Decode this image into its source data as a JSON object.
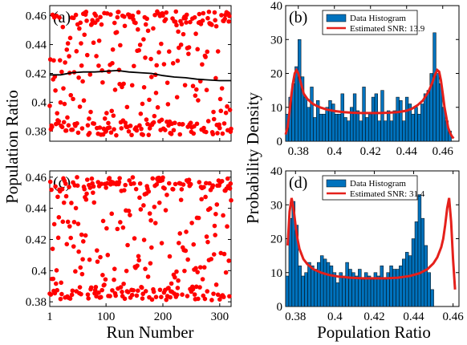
{
  "figure": {
    "ylabel_left": "Population Ratio",
    "xlabel_left": "Run Number",
    "ylabel_right": "Probability Density",
    "xlabel_right": "Population Ratio"
  },
  "colors": {
    "scatter": "#ff0000",
    "running_mean": "#000000",
    "hist_fill": "#0072bd",
    "hist_edge": "#000000",
    "fit_line": "#e5201b"
  },
  "chart_data": [
    {
      "panel": "a",
      "label": "(a)",
      "type": "scatter",
      "xlim": [
        1,
        320
      ],
      "ylim": [
        0.373,
        0.467
      ],
      "xticks": [
        1,
        100,
        200,
        300
      ],
      "yticks": [
        0.38,
        0.4,
        0.42,
        0.44,
        0.46
      ],
      "ytick_labels": [
        "0.38",
        "0.4",
        "0.42",
        "0.44",
        "0.46"
      ],
      "xtick_labels": [
        "",
        "",
        "",
        ""
      ],
      "seed": 7,
      "n_points": 320,
      "running_mean": {
        "x": [
          1,
          20,
          40,
          60,
          80,
          100,
          120,
          140,
          160,
          180,
          200,
          220,
          240,
          260,
          280,
          300,
          320
        ],
        "y": [
          0.419,
          0.419,
          0.4205,
          0.421,
          0.421,
          0.4215,
          0.422,
          0.421,
          0.4205,
          0.42,
          0.4185,
          0.4175,
          0.417,
          0.416,
          0.4155,
          0.415,
          0.415
        ]
      }
    },
    {
      "panel": "c",
      "label": "(c)",
      "type": "scatter",
      "xlim": [
        1,
        320
      ],
      "ylim": [
        0.377,
        0.464
      ],
      "xticks": [
        1,
        100,
        200,
        300
      ],
      "yticks": [
        0.38,
        0.4,
        0.42,
        0.44,
        0.46
      ],
      "ytick_labels": [
        "0.38",
        "0.4",
        "0.42",
        "0.44",
        "0.46"
      ],
      "xtick_labels": [
        "1",
        "100",
        "200",
        "300"
      ],
      "seed": 19,
      "n_points": 320
    },
    {
      "panel": "b",
      "label": "(b)",
      "type": "bar",
      "xlim": [
        0.373,
        0.469
      ],
      "ylim": [
        0,
        40
      ],
      "xticks": [
        0.38,
        0.4,
        0.42,
        0.44,
        0.46
      ],
      "xtick_labels": [
        "0.38",
        "0.4",
        "0.42",
        "0.44",
        "0.46"
      ],
      "yticks": [
        0,
        10,
        20,
        30,
        40
      ],
      "ytick_labels": [
        "0",
        "10",
        "20",
        "30",
        "40"
      ],
      "bin_start": 0.373,
      "bin_width": 0.0017,
      "values": [
        8,
        13,
        17,
        22,
        30,
        19,
        13,
        10,
        16,
        7,
        12,
        8,
        8,
        10,
        12,
        11,
        8,
        8,
        14,
        7,
        6,
        10,
        14,
        9,
        6,
        16,
        7,
        8,
        13,
        14,
        6,
        15,
        6,
        9,
        6,
        9,
        13,
        12,
        6,
        13,
        11,
        8,
        10,
        8,
        11,
        14,
        15,
        20,
        32,
        20,
        17,
        10,
        6,
        3
      ],
      "fit": {
        "x": [
          0.373,
          0.374,
          0.375,
          0.376,
          0.377,
          0.378,
          0.379,
          0.38,
          0.381,
          0.382,
          0.383,
          0.385,
          0.388,
          0.392,
          0.396,
          0.4,
          0.405,
          0.41,
          0.415,
          0.42,
          0.425,
          0.43,
          0.435,
          0.44,
          0.443,
          0.446,
          0.449,
          0.452,
          0.454,
          0.456,
          0.457,
          0.458,
          0.459,
          0.46,
          0.461,
          0.462,
          0.463,
          0.464,
          0.465,
          0.466
        ],
        "y": [
          2,
          4,
          8,
          13,
          17,
          20,
          21,
          20,
          18,
          16,
          14,
          12.5,
          11,
          10,
          9.3,
          8.9,
          8.6,
          8.4,
          8.3,
          8.3,
          8.3,
          8.4,
          8.6,
          9,
          9.6,
          10.6,
          12,
          14.5,
          17,
          20,
          21,
          20.5,
          18,
          14,
          10,
          7,
          4,
          2.5,
          1.5,
          0.8
        ]
      },
      "legend": {
        "histogram": "Data Histogram",
        "fit": "Estimated SNR: 13.9"
      }
    },
    {
      "panel": "d",
      "label": "(d)",
      "type": "bar",
      "xlim": [
        0.375,
        0.463
      ],
      "ylim": [
        0,
        40
      ],
      "xticks": [
        0.38,
        0.4,
        0.42,
        0.44,
        0.46
      ],
      "xtick_labels": [
        "0.38",
        "0.4",
        "0.42",
        "0.44",
        "0.46"
      ],
      "yticks": [
        0,
        10,
        20,
        30,
        40
      ],
      "ytick_labels": [
        "0",
        "10",
        "20",
        "30",
        "40"
      ],
      "bin_start": 0.375,
      "bin_width": 0.0016,
      "values": [
        9,
        26,
        31,
        24,
        12,
        9,
        10,
        13,
        12,
        11,
        13,
        15,
        14,
        13,
        12,
        10,
        7,
        10,
        9,
        13,
        11,
        10,
        9,
        11,
        8,
        10,
        9,
        8,
        10,
        9,
        12,
        8,
        10,
        12,
        11,
        11,
        12,
        14,
        16,
        15,
        20,
        25,
        33,
        26,
        18,
        10,
        5
      ],
      "fit": {
        "x": [
          0.376,
          0.377,
          0.378,
          0.379,
          0.38,
          0.381,
          0.382,
          0.384,
          0.386,
          0.389,
          0.393,
          0.397,
          0.402,
          0.408,
          0.414,
          0.42,
          0.426,
          0.432,
          0.438,
          0.443,
          0.447,
          0.45,
          0.452,
          0.454,
          0.455,
          0.456,
          0.457,
          0.458,
          0.459,
          0.46,
          0.461
        ],
        "y": [
          18,
          28,
          32,
          29,
          24,
          20,
          17,
          14,
          12.5,
          11,
          10,
          9.3,
          8.8,
          8.5,
          8.3,
          8.3,
          8.3,
          8.5,
          9,
          9.8,
          11,
          12.7,
          14.5,
          17.5,
          20,
          24,
          29,
          32,
          25,
          14,
          5
        ]
      },
      "legend": {
        "histogram": "Data Histogram",
        "fit": "Estimated SNR: 31.4"
      }
    }
  ]
}
